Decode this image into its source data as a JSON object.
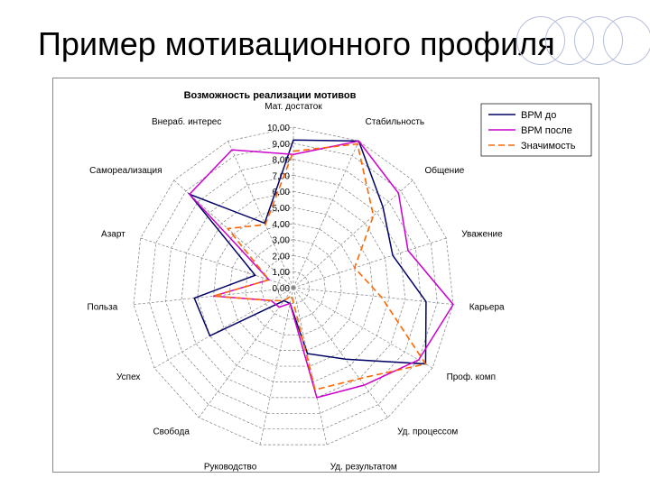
{
  "slide": {
    "title": "Пример мотивационного профиля"
  },
  "chart_data": {
    "type": "radar",
    "title": "Возможность реализации мотивов",
    "categories": [
      "Мат. достаток",
      "Стабильность",
      "Общение",
      "Уважение",
      "Карьера",
      "Проф. комп",
      "Уд. процессом",
      "Уд. результатом",
      "Руководство",
      "Свобода",
      "Успех",
      "Польза",
      "Азарт",
      "Самореализация",
      "Внераб. интерес"
    ],
    "r_ticks": [
      "0,00",
      "1,00",
      "2,00",
      "3,00",
      "4,00",
      "5,00",
      "6,00",
      "7,00",
      "8,00",
      "9,00",
      "10,00"
    ],
    "rlim": [
      0,
      10
    ],
    "series": [
      {
        "name": "ВРМ до",
        "color": "#000066",
        "dash": "solid",
        "values": [
          9.2,
          10.0,
          7.5,
          6.5,
          8.3,
          9.5,
          5.5,
          4.2,
          1.0,
          1.0,
          6.0,
          6.2,
          2.5,
          8.7,
          4.4
        ]
      },
      {
        "name": "ВРМ после",
        "color": "#cc00cc",
        "dash": "solid",
        "values": [
          8.3,
          10.0,
          8.8,
          7.5,
          10.0,
          9.0,
          7.5,
          7.0,
          1.0,
          1.5,
          1.6,
          5.0,
          1.6,
          8.7,
          9.4
        ]
      },
      {
        "name": "Значимость",
        "color": "#ff6600",
        "dash": "dashed",
        "values": [
          8.5,
          9.8,
          6.7,
          4.0,
          5.5,
          9.5,
          7.0,
          6.5,
          0.5,
          1.0,
          1.6,
          5.0,
          1.6,
          5.5,
          4.3
        ]
      }
    ],
    "legend_position": "top-right",
    "grid": true
  }
}
